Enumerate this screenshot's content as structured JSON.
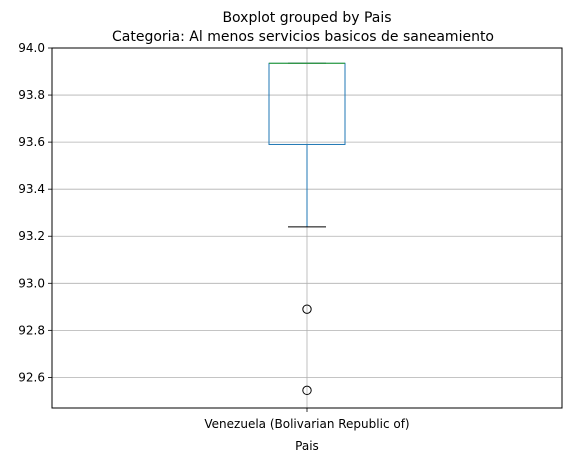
{
  "chart_data": {
    "type": "box",
    "suptitle": "Boxplot grouped by Pais",
    "title": "Categoria: Al menos servicios basicos de saneamiento",
    "xlabel": "Pais",
    "ylabel": "",
    "categories": [
      "Venezuela (Bolivarian Republic of)"
    ],
    "boxes": [
      {
        "category": "Venezuela (Bolivarian Republic of)",
        "whisker_low": 93.24,
        "q1": 93.59,
        "median": 93.935,
        "q3": 93.935,
        "whisker_high": 93.935,
        "outliers": [
          92.89,
          92.545
        ]
      }
    ],
    "ylim": [
      92.47,
      94.0
    ],
    "yticks": [
      "92.6",
      "92.8",
      "93.0",
      "93.2",
      "93.4",
      "93.6",
      "93.8",
      "94.0"
    ],
    "grid": true,
    "colors": {
      "box": "#1f77b4",
      "median": "#2ca02c",
      "whisker": "#000000",
      "grid": "#b0b0b0"
    }
  }
}
